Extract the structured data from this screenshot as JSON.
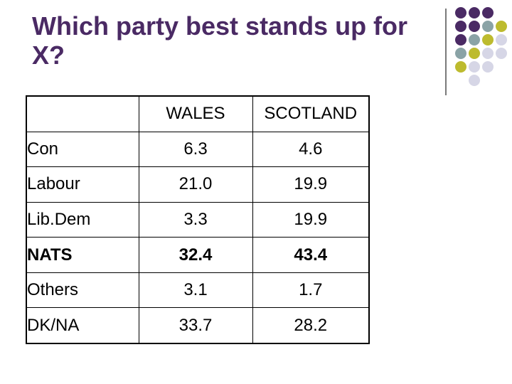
{
  "slide": {
    "title_line1": "Which party best stands up for",
    "title_line2": "X?"
  },
  "decoration": {
    "colors": {
      "purple": "#4a2a64",
      "teal": "#8aa3a6",
      "olive": "#bdbb2e",
      "lavender": "#d6d6e6"
    },
    "dot_grid": [
      [
        "purple",
        "purple",
        "purple"
      ],
      [
        "purple",
        "purple",
        "teal",
        "olive"
      ],
      [
        "purple",
        "teal",
        "olive",
        "lavender"
      ],
      [
        "teal",
        "olive",
        "lavender",
        "lavender"
      ],
      [
        "olive",
        "lavender",
        "lavender"
      ],
      [
        "lavender"
      ]
    ]
  },
  "table": {
    "header": [
      "",
      "WALES",
      "SCOTLAND"
    ],
    "rows": [
      {
        "label": "Con",
        "wales": "6.3",
        "scotland": "4.6",
        "bold": false
      },
      {
        "label": "Labour",
        "wales": "21.0",
        "scotland": "19.9",
        "bold": false
      },
      {
        "label": "Lib.Dem",
        "wales": "3.3",
        "scotland": "19.9",
        "bold": false
      },
      {
        "label": "NATS",
        "wales": "32.4",
        "scotland": "43.4",
        "bold": true
      },
      {
        "label": "Others",
        "wales": "3.1",
        "scotland": "1.7",
        "bold": false
      },
      {
        "label": "DK/NA",
        "wales": "33.7",
        "scotland": "28.2",
        "bold": false
      }
    ]
  }
}
